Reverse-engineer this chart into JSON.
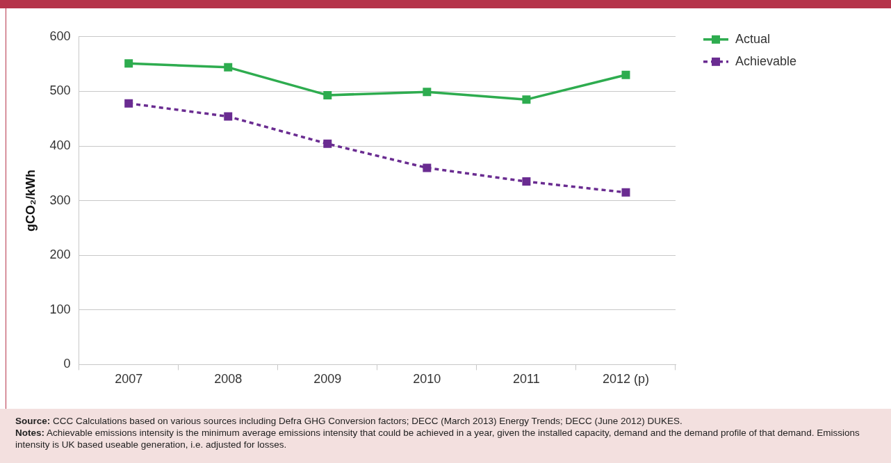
{
  "chart_data": {
    "type": "line",
    "ylabel": "gCO₂/kWh",
    "categories": [
      "2007",
      "2008",
      "2009",
      "2010",
      "2011",
      "2012 (p)"
    ],
    "series": [
      {
        "name": "Actual",
        "color": "#2eac4f",
        "values": [
          551,
          544,
          493,
          499,
          485,
          530
        ],
        "line_style": "solid"
      },
      {
        "name": "Achievable",
        "color": "#6a2c91",
        "values": [
          478,
          454,
          404,
          360,
          335,
          315
        ],
        "line_style": "dashed"
      }
    ],
    "ylim": [
      0,
      600
    ],
    "yticks": [
      0,
      100,
      200,
      300,
      400,
      500,
      600
    ],
    "grid": "y",
    "legend": "top right",
    "marker": "square",
    "annotations": [
      "Source: CCC Calculations based on various sources including Defra GHG Conversion factors; DECC (March 2013) Energy Trends; DECC (June 2012) DUKES.",
      "Notes: Achievable emissions intensity is the minimum average emissions intensity that could be achieved in a year, given the installed capacity, demand and the demand profile of that demand. Emissions intensity is UK based useable generation, i.e. adjusted for losses."
    ]
  }
}
